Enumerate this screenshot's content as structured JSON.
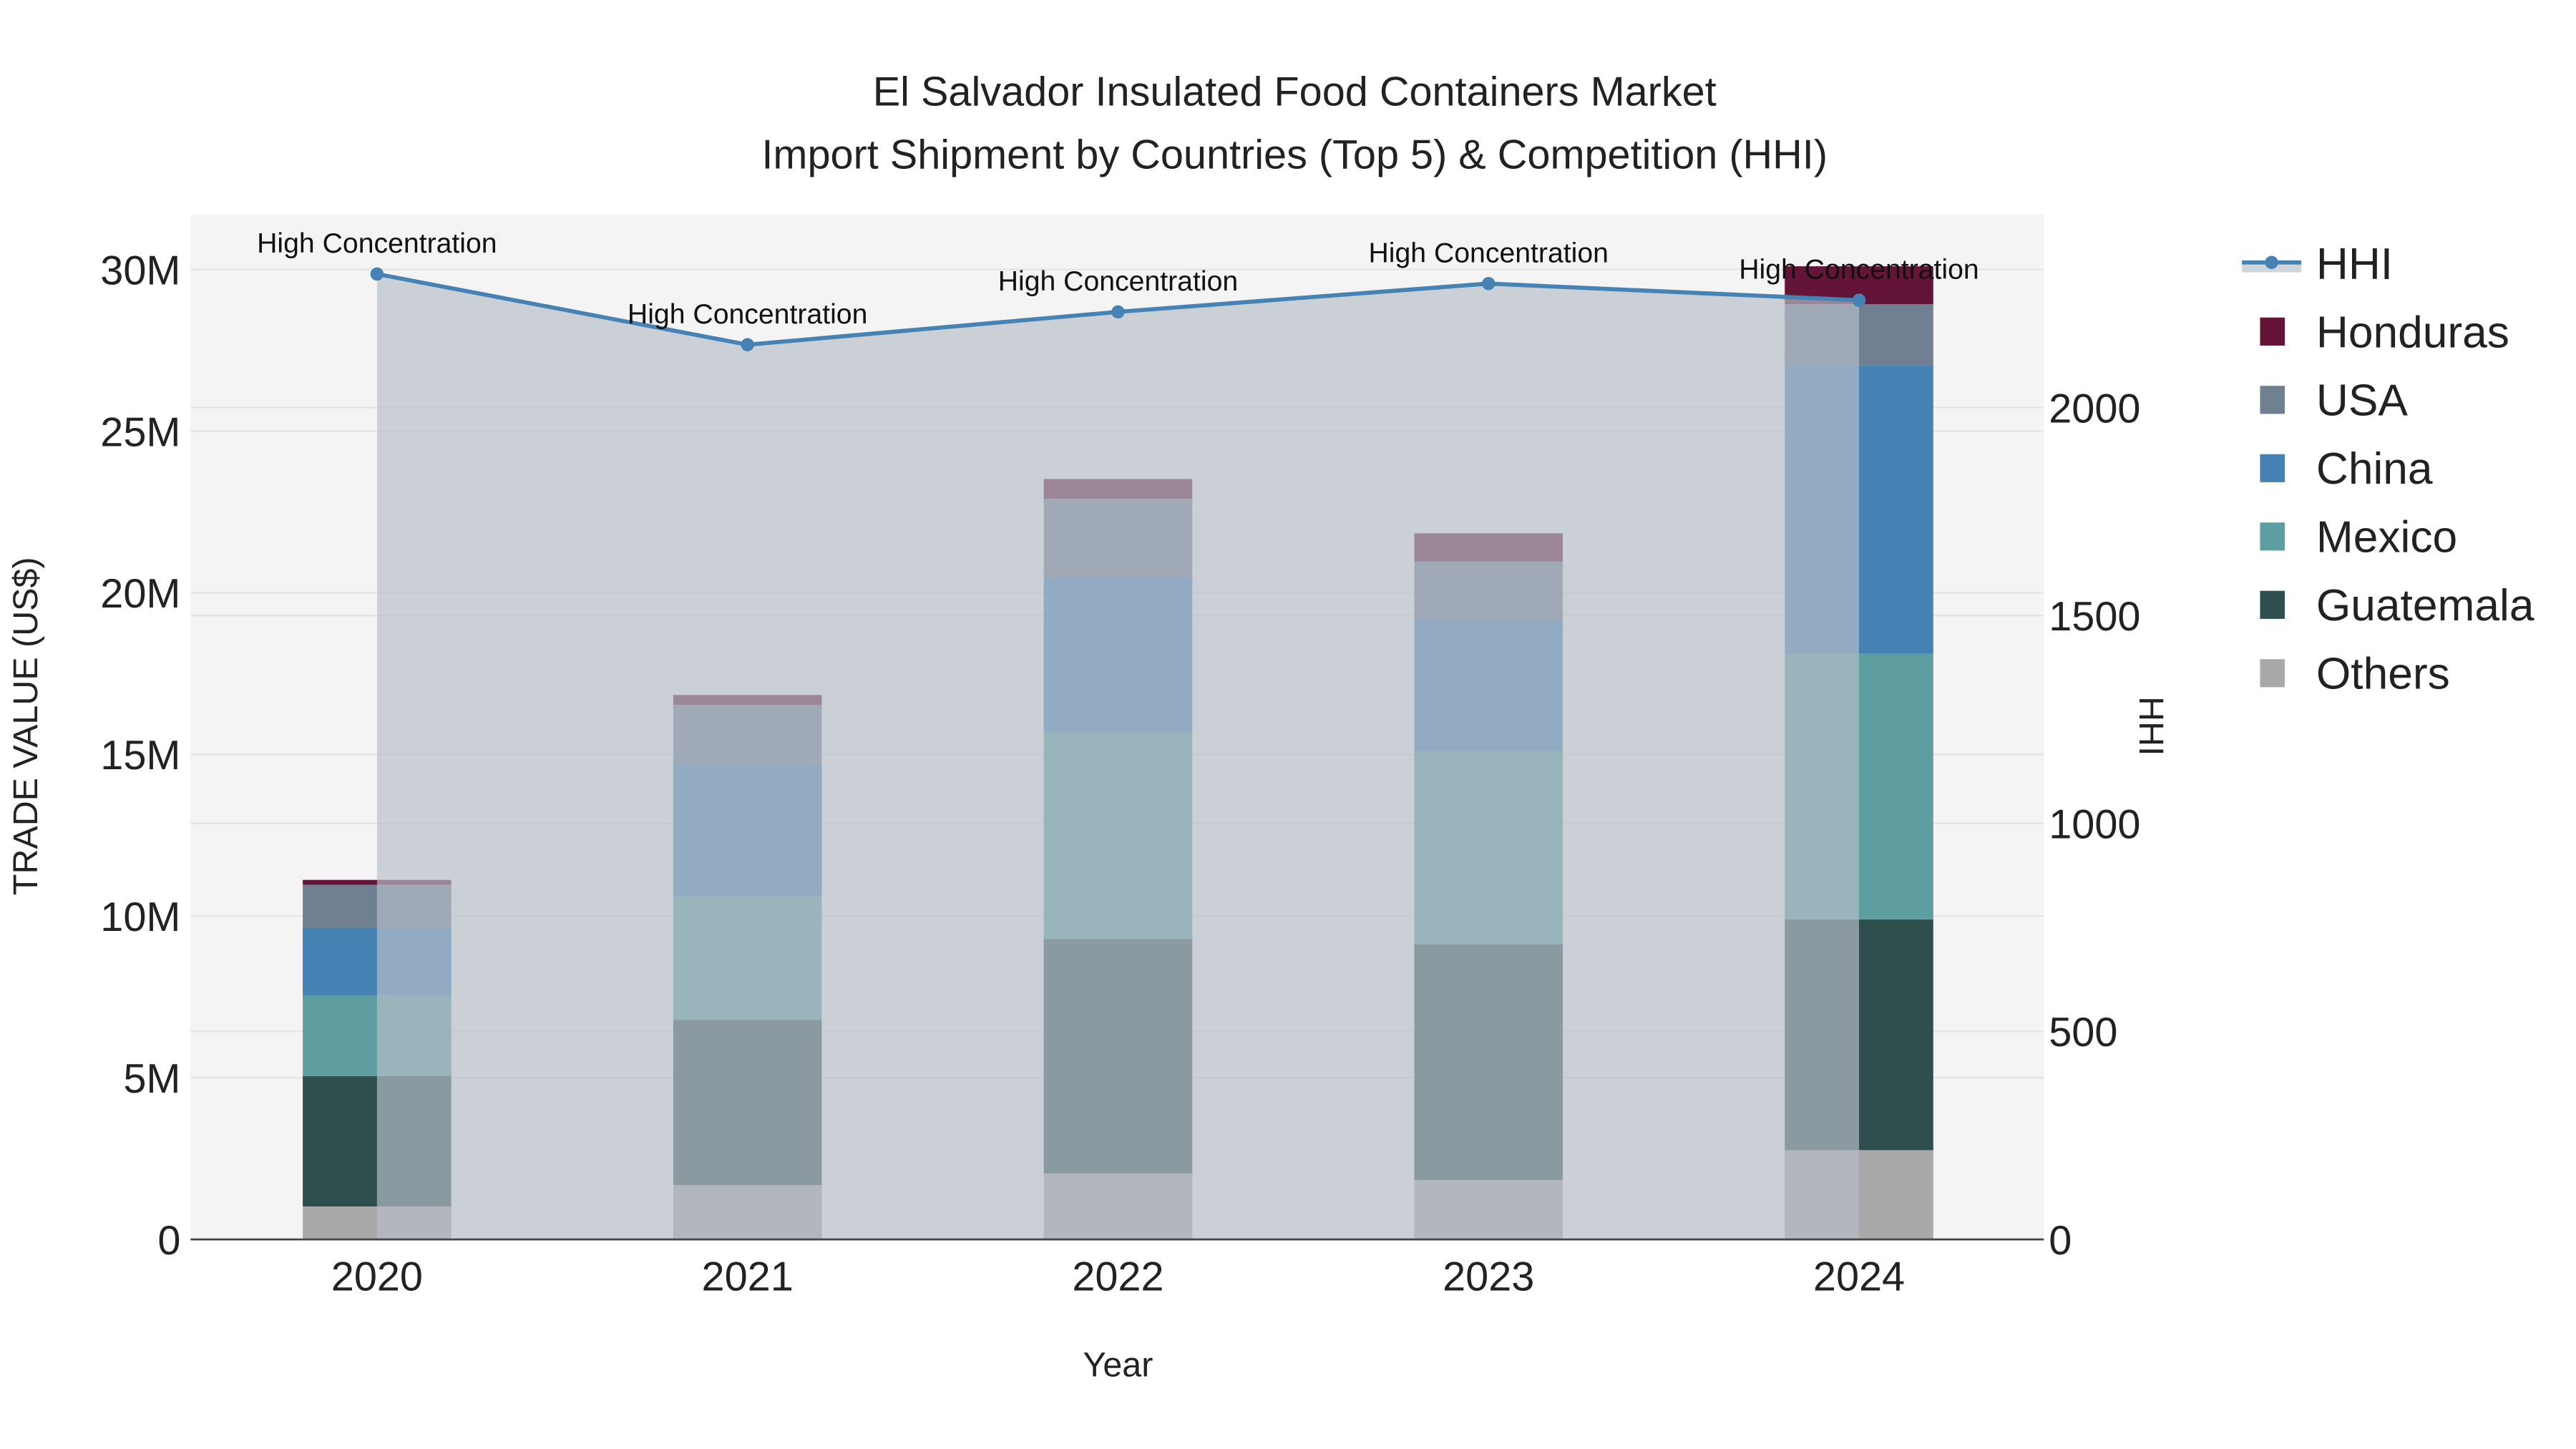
{
  "chart_data": {
    "type": "bar",
    "title_line1": "El Salvador Insulated Food Containers Market",
    "title_line2": "Import Shipment by Countries (Top 5) & Competition (HHI)",
    "xlabel": "Year",
    "ylabel": "TRADE VALUE (US$)",
    "y2label": "HHI",
    "categories": [
      "2020",
      "2021",
      "2022",
      "2023",
      "2024"
    ],
    "ylim": [
      0,
      31700000
    ],
    "y2lim": [
      0,
      2464
    ],
    "yticks": [
      {
        "v": 0,
        "label": "0"
      },
      {
        "v": 5000000,
        "label": "5M"
      },
      {
        "v": 10000000,
        "label": "10M"
      },
      {
        "v": 15000000,
        "label": "15M"
      },
      {
        "v": 20000000,
        "label": "20M"
      },
      {
        "v": 25000000,
        "label": "25M"
      },
      {
        "v": 30000000,
        "label": "30M"
      }
    ],
    "y2ticks": [
      {
        "v": 0,
        "label": "0"
      },
      {
        "v": 500,
        "label": "500"
      },
      {
        "v": 1000,
        "label": "1000"
      },
      {
        "v": 1500,
        "label": "1500"
      },
      {
        "v": 2000,
        "label": "2000"
      }
    ],
    "stacked": true,
    "series": [
      {
        "name": "Others",
        "color": "#a9a9a9",
        "values": [
          1020000,
          1680000,
          2040000,
          1840000,
          2760000
        ]
      },
      {
        "name": "Guatemala",
        "color": "#2f4f4f",
        "values": [
          4030000,
          5110000,
          7250000,
          7290000,
          7140000
        ]
      },
      {
        "name": "Mexico",
        "color": "#5f9ea0",
        "values": [
          2500000,
          3820000,
          6370000,
          5970000,
          8210000
        ]
      },
      {
        "name": "China",
        "color": "#4682b4",
        "values": [
          2090000,
          4080000,
          4800000,
          4080000,
          8930000
        ]
      },
      {
        "name": "USA",
        "color": "#708090",
        "values": [
          1330000,
          1840000,
          2450000,
          1790000,
          1890000
        ]
      },
      {
        "name": "Honduras",
        "color": "#641537",
        "values": [
          150000,
          310000,
          610000,
          870000,
          1170000
        ]
      }
    ],
    "hhi": {
      "name": "HHI",
      "color": "#4682b4",
      "values": [
        2321,
        2151,
        2230,
        2298,
        2258
      ],
      "annotations": [
        "High Concentration",
        "High Concentration",
        "High Concentration",
        "High Concentration",
        "High Concentration"
      ]
    },
    "legend": [
      "HHI",
      "Honduras",
      "USA",
      "China",
      "Mexico",
      "Guatemala",
      "Others"
    ],
    "legend_position": "right",
    "grid": true
  }
}
